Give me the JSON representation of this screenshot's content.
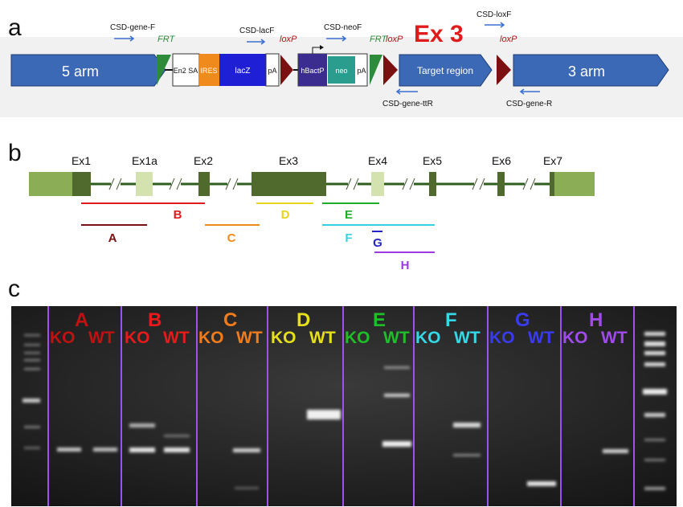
{
  "panel_a": {
    "letter": "a",
    "exon_title": "Ex 3",
    "arm5": "5 arm",
    "arm3": "3 arm",
    "target": "Target region",
    "cassette": {
      "en2sa": "En2 SA",
      "ires": "IRES",
      "lacz": "lacZ",
      "pa1": "pA",
      "hbactp": "hBactP",
      "neo": "neo",
      "pa2": "pA"
    },
    "site_labels": {
      "frt1": "FRT",
      "loxp1": "loxP",
      "frt2": "FRT",
      "loxp2": "loxP",
      "loxp3": "loxP"
    },
    "primers": {
      "gene_f": "CSD-gene-F",
      "lacf": "CSD-lacF",
      "neof": "CSD-neoF",
      "loxf": "CSD-loxF",
      "gene_ttr": "CSD-gene-ttR",
      "gene_r": "CSD-gene-R"
    },
    "colors": {
      "arm": "#3b69b5",
      "frt": "#2e8b3a",
      "loxp": "#7a1010",
      "ires": "#f08a1c",
      "lacz": "#1f1fd6",
      "hbactp": "#3a2d8f",
      "neo": "#2a9d8f",
      "exon_title": "#e01b1b",
      "primer": "#3a6fd0"
    }
  },
  "panel_b": {
    "letter": "b",
    "exons": [
      "Ex1",
      "Ex1a",
      "Ex2",
      "Ex3",
      "Ex4",
      "Ex5",
      "Ex6",
      "Ex7"
    ],
    "amplicons": [
      {
        "name": "A",
        "color": "#7a1010"
      },
      {
        "name": "B",
        "color": "#e01b1b"
      },
      {
        "name": "C",
        "color": "#f08a1c"
      },
      {
        "name": "D",
        "color": "#e6d51a"
      },
      {
        "name": "E",
        "color": "#1fae2a"
      },
      {
        "name": "F",
        "color": "#34d1e0"
      },
      {
        "name": "G",
        "color": "#2424c8"
      },
      {
        "name": "H",
        "color": "#9a3ae0"
      }
    ]
  },
  "panel_c": {
    "letter": "c",
    "ko_label": "KO",
    "wt_label": "WT",
    "lanes": [
      {
        "name": "A",
        "color": "#c01212"
      },
      {
        "name": "B",
        "color": "#e81a1a"
      },
      {
        "name": "C",
        "color": "#f07c1c"
      },
      {
        "name": "D",
        "color": "#e6e01a"
      },
      {
        "name": "E",
        "color": "#1fbf2a"
      },
      {
        "name": "F",
        "color": "#34d8e6"
      },
      {
        "name": "G",
        "color": "#3a3af0"
      },
      {
        "name": "H",
        "color": "#a04af0"
      }
    ],
    "divider_color": "#a050f0"
  }
}
